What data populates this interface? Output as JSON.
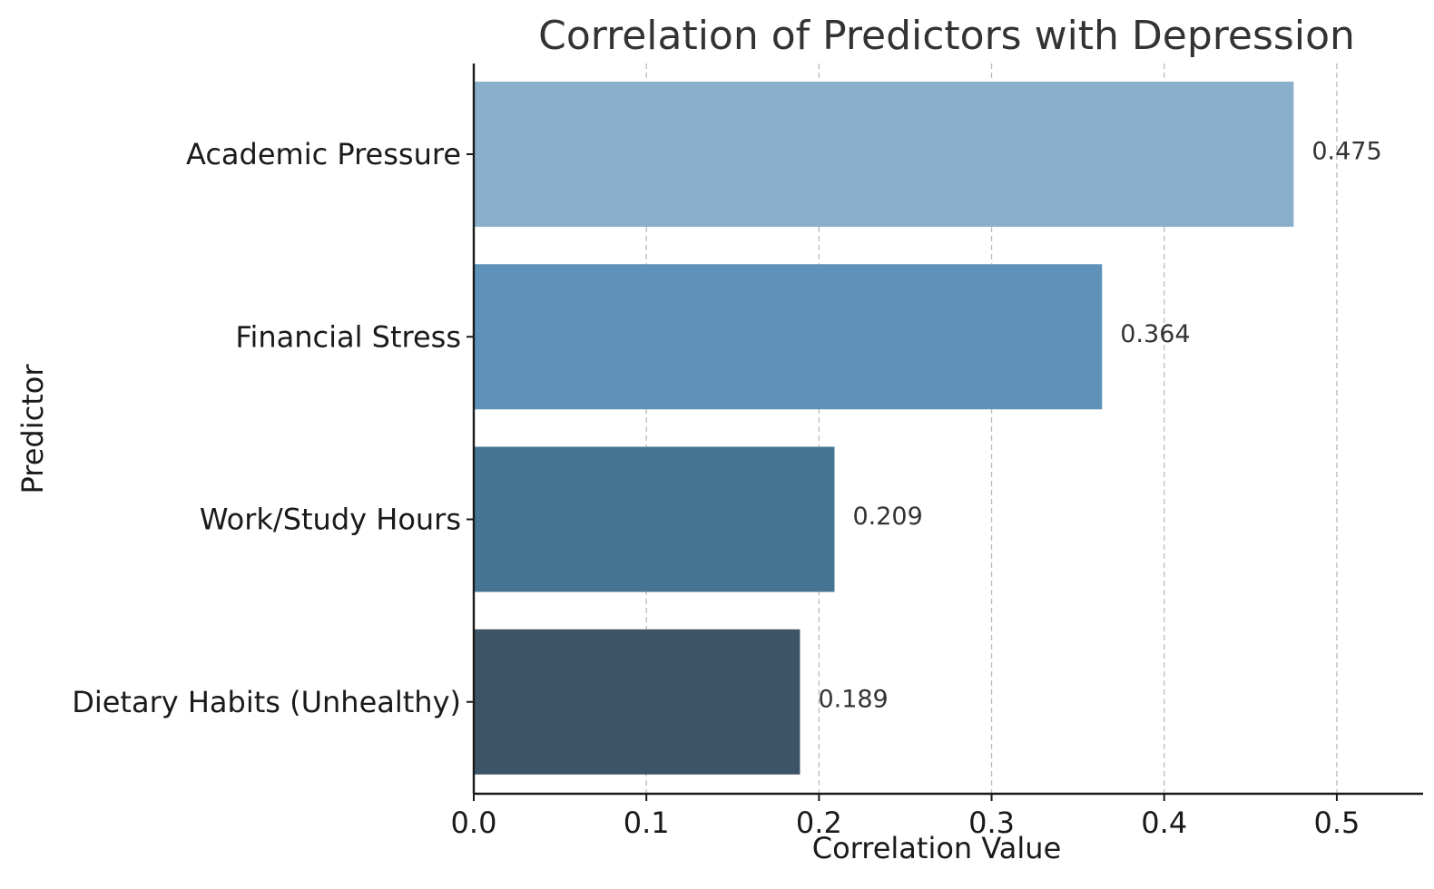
{
  "chart_data": {
    "type": "bar",
    "orientation": "horizontal",
    "title": "Correlation of Predictors with Depression",
    "xlabel": "Correlation Value",
    "ylabel": "Predictor",
    "categories": [
      "Academic Pressure",
      "Financial Stress",
      "Work/Study Hours",
      "Dietary Habits (Unhealthy)"
    ],
    "values": [
      0.475,
      0.364,
      0.209,
      0.189
    ],
    "data_labels": [
      "0.475",
      "0.364",
      "0.209",
      "0.189"
    ],
    "colors": [
      "#8aafca",
      "#5e92b8",
      "#467594",
      "#3d5366"
    ],
    "xlim": [
      0,
      0.55
    ],
    "xticks": [
      0.0,
      0.1,
      0.2,
      0.3,
      0.4,
      0.5
    ],
    "xtick_labels": [
      "0.0",
      "0.1",
      "0.2",
      "0.3",
      "0.4",
      "0.5"
    ],
    "grid": "x-dashed",
    "legend": "none"
  }
}
